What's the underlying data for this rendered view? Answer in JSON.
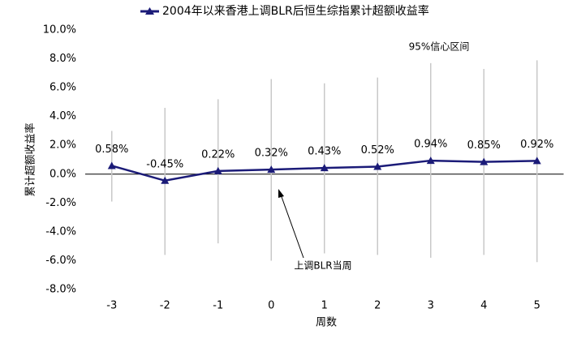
{
  "chart_data": {
    "type": "line",
    "y_label": "累计超额收益率",
    "x_label": "周数",
    "annotations": [
      "95%信心区间",
      "上调BLR当周"
    ],
    "categories": [
      "-3",
      "-2",
      "-1",
      "0",
      "1",
      "2",
      "3",
      "4",
      "5"
    ],
    "series": [
      {
        "name": "2004年以来香港上调BLR后恒生综指累计超额收益率",
        "color": "#1b1b78",
        "values": [
          0.58,
          -0.45,
          0.22,
          0.32,
          0.43,
          0.52,
          0.94,
          0.85,
          0.92
        ],
        "value_labels": [
          "0.58%",
          "-0.45%",
          "0.22%",
          "0.32%",
          "0.43%",
          "0.52%",
          "0.94%",
          "0.85%",
          "0.92%"
        ],
        "error_high": [
          3.0,
          4.6,
          5.2,
          6.6,
          6.3,
          6.7,
          7.7,
          7.3,
          7.9
        ],
        "error_low": [
          -1.9,
          -5.6,
          -4.8,
          -6.0,
          -5.5,
          -5.6,
          -5.8,
          -5.6,
          -6.1
        ],
        "error_color": "#c8c8c8"
      }
    ],
    "ylim": [
      -8,
      10
    ],
    "yticks": [
      {
        "value": -8,
        "label": "-8.0%"
      },
      {
        "value": -6,
        "label": "-6.0%"
      },
      {
        "value": -4,
        "label": "-4.0%"
      },
      {
        "value": -2,
        "label": "-2.0%"
      },
      {
        "value": 0,
        "label": "0.0%"
      },
      {
        "value": 2,
        "label": "2.0%"
      },
      {
        "value": 4,
        "label": "4.0%"
      },
      {
        "value": 6,
        "label": "6.0%"
      },
      {
        "value": 8,
        "label": "8.0%"
      },
      {
        "value": 10,
        "label": "10.0%"
      }
    ]
  }
}
